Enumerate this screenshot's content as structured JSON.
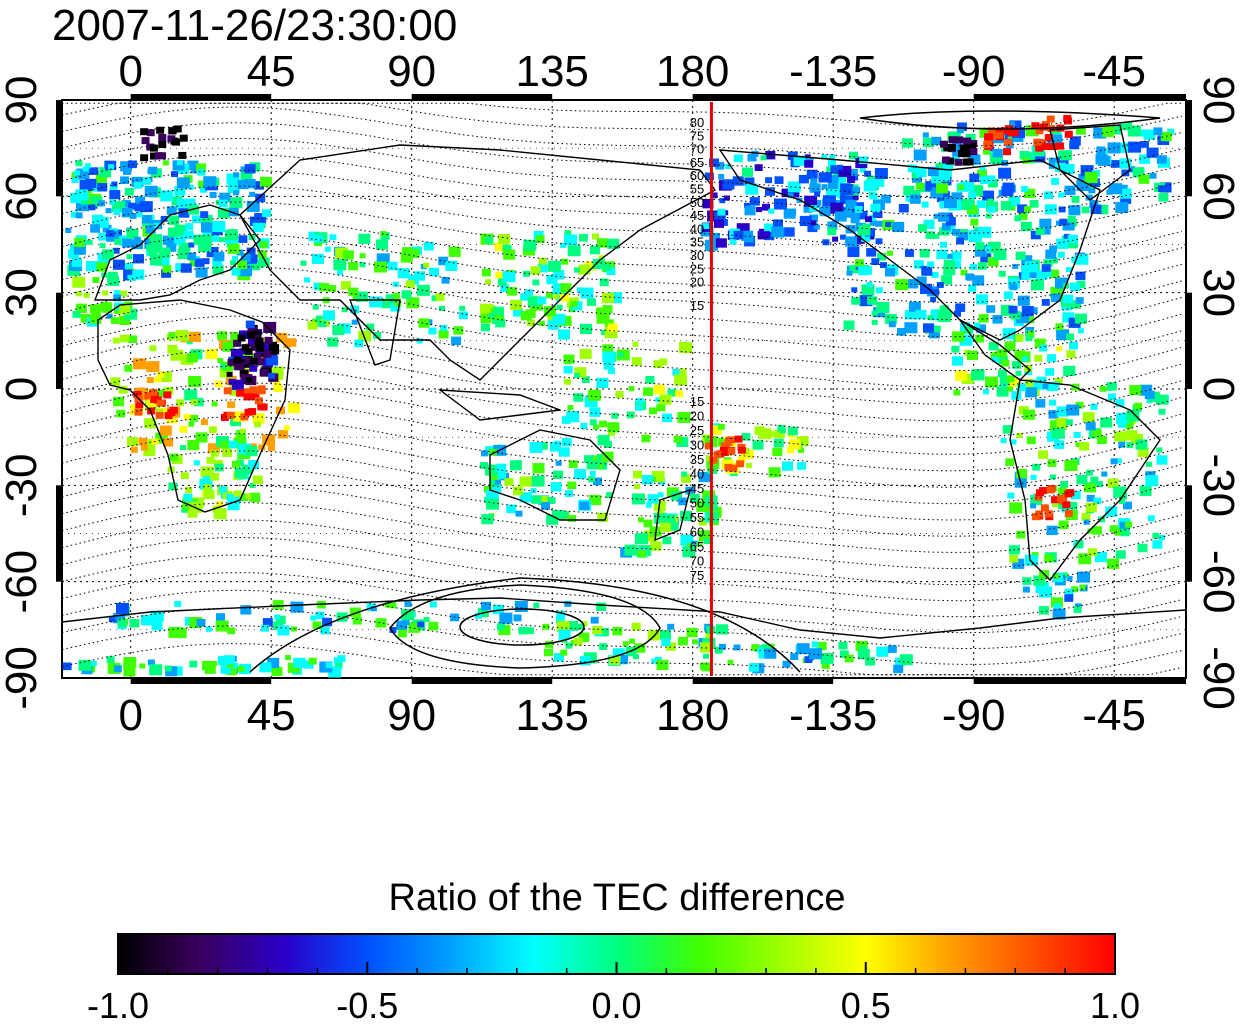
{
  "header": {
    "timestamp": "2007-11-26/23:30:00"
  },
  "map": {
    "lon_ticks": [
      "0",
      "45",
      "90",
      "135",
      "180",
      "-135",
      "-90",
      "-45"
    ],
    "lat_ticks": [
      "90",
      "60",
      "30",
      "0",
      "-30",
      "-60",
      "-90"
    ],
    "marker_longitude": -174,
    "marker_color": "#e00000",
    "north_contour_labels": [
      "80",
      "75",
      "70",
      "65",
      "60",
      "55",
      "50",
      "45",
      "40",
      "35",
      "30",
      "25",
      "20",
      "15"
    ],
    "south_contour_labels": [
      "15",
      "20",
      "25",
      "30",
      "35",
      "40",
      "45",
      "50",
      "55",
      "60",
      "65",
      "70",
      "75"
    ]
  },
  "colorbar": {
    "title": "Ratio of the TEC difference",
    "tick_labels": [
      "-1.0",
      "-0.5",
      "0.0",
      "0.5",
      "1.0"
    ],
    "stops": [
      "#000000",
      "#3a0060",
      "#2a00c8",
      "#0050ff",
      "#00a0ff",
      "#00ffff",
      "#00ff80",
      "#40ff00",
      "#a0ff00",
      "#ffff00",
      "#ffa000",
      "#ff5000",
      "#ff0000"
    ]
  }
}
